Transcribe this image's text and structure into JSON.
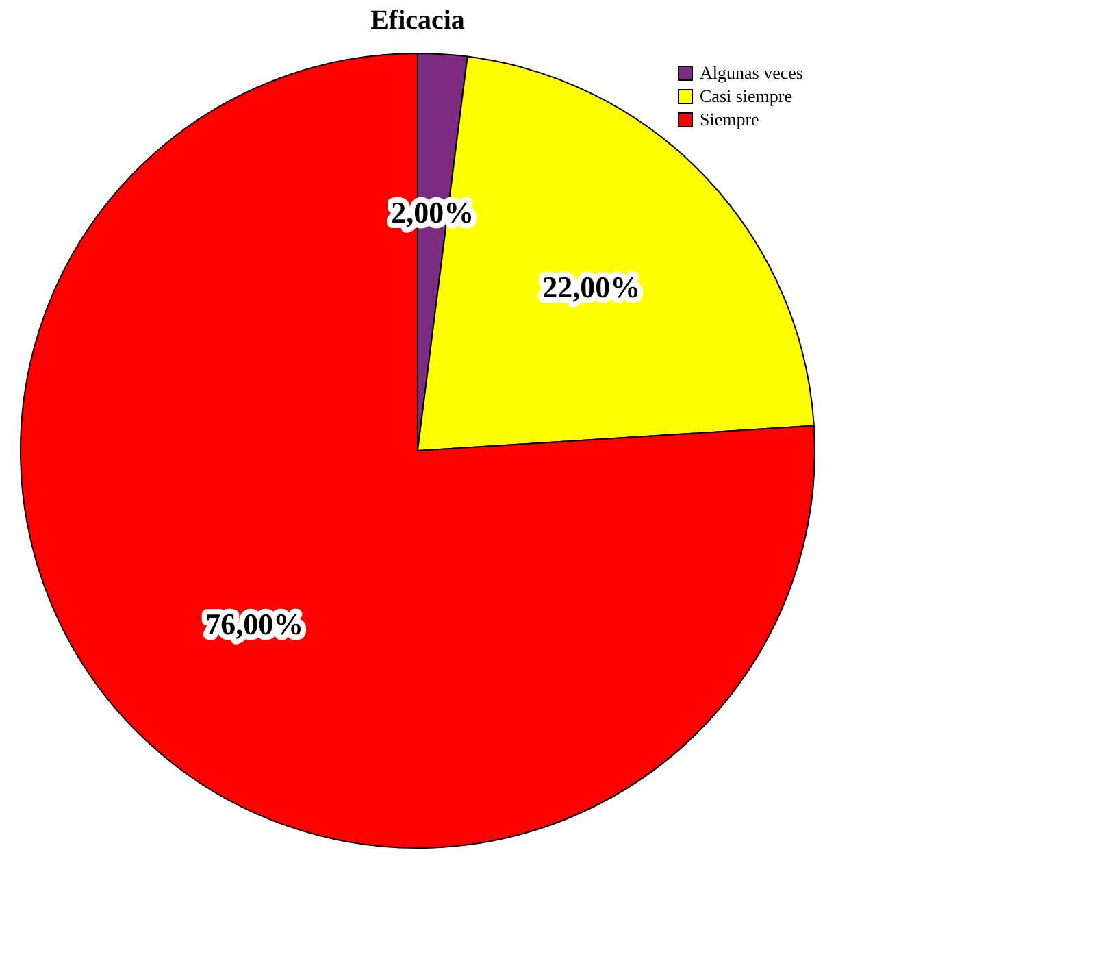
{
  "chart_data": {
    "type": "pie",
    "title": "Eficacia",
    "categories": [
      "Algunas veces",
      "Casi siempre",
      "Siempre"
    ],
    "values": [
      2,
      22,
      76
    ],
    "colors": [
      "#7b2c82",
      "#ffff00",
      "#ff0000"
    ],
    "value_labels": [
      "2,00%",
      "22,00%",
      "76,00%"
    ],
    "legend": "top right"
  }
}
